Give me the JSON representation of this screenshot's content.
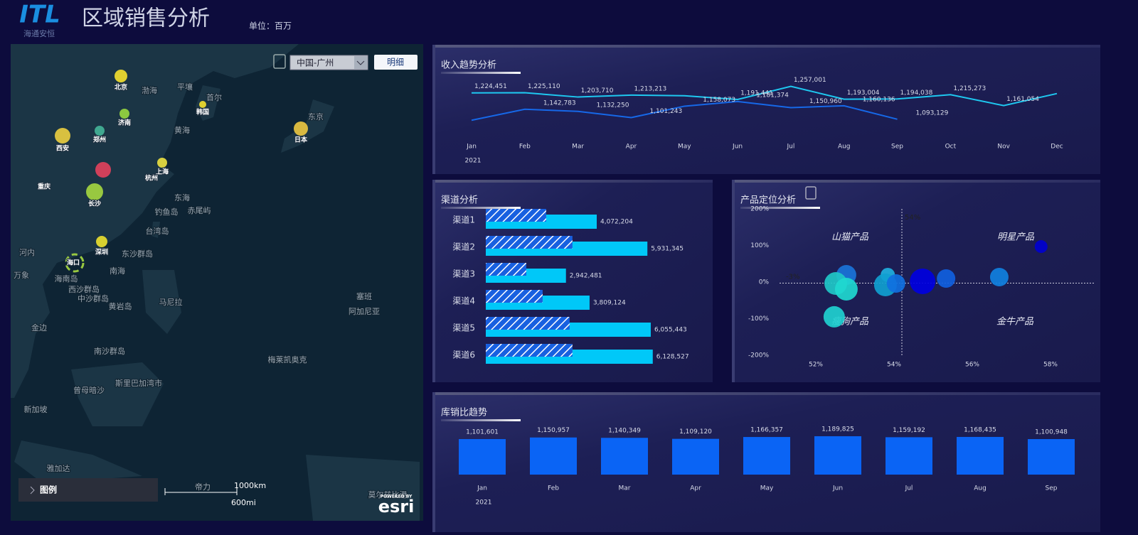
{
  "header": {
    "logo": "ITL",
    "logo_sub": "海通安恒",
    "title": "区域销售分析",
    "unit": "单位：百万"
  },
  "map": {
    "region_select": "中国-广州",
    "detail_button": "明细",
    "legend": "图例",
    "scale_km": "1000km",
    "scale_mi": "600mi",
    "powered_by": "POWERED BY",
    "brand": "esri",
    "places": [
      "北京",
      "韩国",
      "首尔",
      "平壤",
      "渤海",
      "济南",
      "郑州",
      "西安",
      "黄海",
      "上海",
      "杭州",
      "重庆",
      "长沙",
      "东海",
      "钓鱼岛",
      "赤尾屿",
      "台湾岛",
      "深圳",
      "东沙群岛",
      "海口",
      "南海",
      "海南岛",
      "西沙群岛",
      "中沙群岛",
      "黄岩岛",
      "马尼拉",
      "河内",
      "万象",
      "金边",
      "南沙群岛",
      "斯里巴加湾市",
      "曾母暗沙",
      "新加坡",
      "雅加达",
      "帝力",
      "东京",
      "日本",
      "塞班",
      "阿加尼亚",
      "梅莱凯奥克",
      "莫尔兹比港"
    ]
  },
  "chart_data": [
    {
      "type": "line",
      "title": "收入趋势分析",
      "categories": [
        "Jan",
        "Feb",
        "Mar",
        "Apr",
        "May",
        "Jun",
        "Jul",
        "Aug",
        "Sep",
        "Oct",
        "Nov",
        "Dec"
      ],
      "x_label": "2021",
      "ylim": [
        1050000,
        1280000
      ],
      "series": [
        {
          "color": "#1ec8f0",
          "values": [
            1224451,
            1225110,
            1203710,
            1213213,
            1210000,
            1191441,
            1257001,
            1193004,
            1194038,
            1215273,
            1161054,
            1221000
          ],
          "value_labels": [
            "1,224,451",
            "1,225,110",
            "1,203,710",
            "1,213,213",
            null,
            "1,191,441",
            "1,257,001",
            "1,193,004",
            "1,194,038",
            "1,215,273",
            "1,161,054",
            null
          ]
        },
        {
          "color": "#1668e8",
          "values": [
            1088000,
            1142783,
            1132250,
            1101243,
            1158073,
            1181374,
            1150960,
            1160136,
            1093129,
            null,
            null,
            null
          ],
          "value_labels": [
            null,
            "1,142,783",
            "1,132,250",
            "1,101,243",
            "1,158,073",
            "1,181,374",
            "1,150,960",
            "1,160,136",
            "1,093,129",
            null,
            null,
            null
          ]
        }
      ]
    },
    {
      "type": "hbar",
      "title": "渠道分析",
      "categories": [
        "渠道1",
        "渠道2",
        "渠道3",
        "渠道4",
        "渠道5",
        "渠道6"
      ],
      "xlim": [
        0,
        6500000
      ],
      "series": [
        {
          "color": "#00c8f8",
          "values": [
            4072204,
            5931345,
            2942481,
            3809124,
            6055443,
            6128527
          ],
          "value_labels": [
            "4,072,204",
            "5,931,345",
            "2,942,481",
            "3,809,124",
            "6,055,443",
            "6,128,527"
          ]
        },
        {
          "color": "#1860e0",
          "pattern": "hatch",
          "values": [
            2217000,
            3180000,
            1487000,
            2086000,
            3077000,
            3180000
          ]
        }
      ]
    },
    {
      "type": "scatter",
      "title": "产品定位分析",
      "xlim": [
        51,
        59
      ],
      "ylim": [
        -200,
        200
      ],
      "xticks": [
        {
          "value": 52,
          "label": "52%"
        },
        {
          "value": 54,
          "label": "54%"
        },
        {
          "value": 56,
          "label": "56%"
        },
        {
          "value": 58,
          "label": "58%"
        }
      ],
      "yticks": [
        {
          "value": 200,
          "label": "200%"
        },
        {
          "value": 100,
          "label": "100%"
        },
        {
          "value": 0,
          "label": "0%"
        },
        {
          "value": -100,
          "label": "-100%"
        },
        {
          "value": -200,
          "label": "-200%"
        }
      ],
      "x_ref": {
        "value": 54.2,
        "label": "54%"
      },
      "y_ref": {
        "value": -3,
        "label": "-3%"
      },
      "quadrants": [
        "山猫产品",
        "明星产品",
        "瘦狗产品",
        "金牛产品"
      ],
      "x": [
        52.78,
        52.51,
        52.78,
        52.47,
        53.84,
        53.78,
        54.05,
        54.73,
        55.33,
        56.69,
        57.76
      ],
      "values": [
        19.4,
        -3.9,
        -19.4,
        -95,
        19.4,
        -7.8,
        -3.9,
        1.9,
        9.7,
        13.6,
        97
      ],
      "sizes": [
        196,
        256,
        256,
        225,
        100,
        256,
        169,
        324,
        169,
        169,
        81
      ],
      "colors": [
        "#1a73d9",
        "#20c8c8",
        "#20d8d0",
        "#20d0d0",
        "#20b0e0",
        "#10a0d0",
        "#1070e0",
        "#0000e0",
        "#1060e0",
        "#1080e0",
        "#0000d0"
      ]
    },
    {
      "type": "bar",
      "title": "库销比趋势",
      "categories": [
        "Jan",
        "Feb",
        "Mar",
        "Apr",
        "May",
        "Jun",
        "Jul",
        "Aug",
        "Sep"
      ],
      "x_label": "2021",
      "color": "#0a64f5",
      "ylim": [
        0,
        2000000
      ],
      "values": [
        1101601,
        1150957,
        1140349,
        1109120,
        1166357,
        1189825,
        1159192,
        1168435,
        1100948
      ],
      "value_labels": [
        "1,101,601",
        "1,150,957",
        "1,140,349",
        "1,109,120",
        "1,166,357",
        "1,189,825",
        "1,159,192",
        "1,168,435",
        "1,100,948"
      ]
    }
  ]
}
